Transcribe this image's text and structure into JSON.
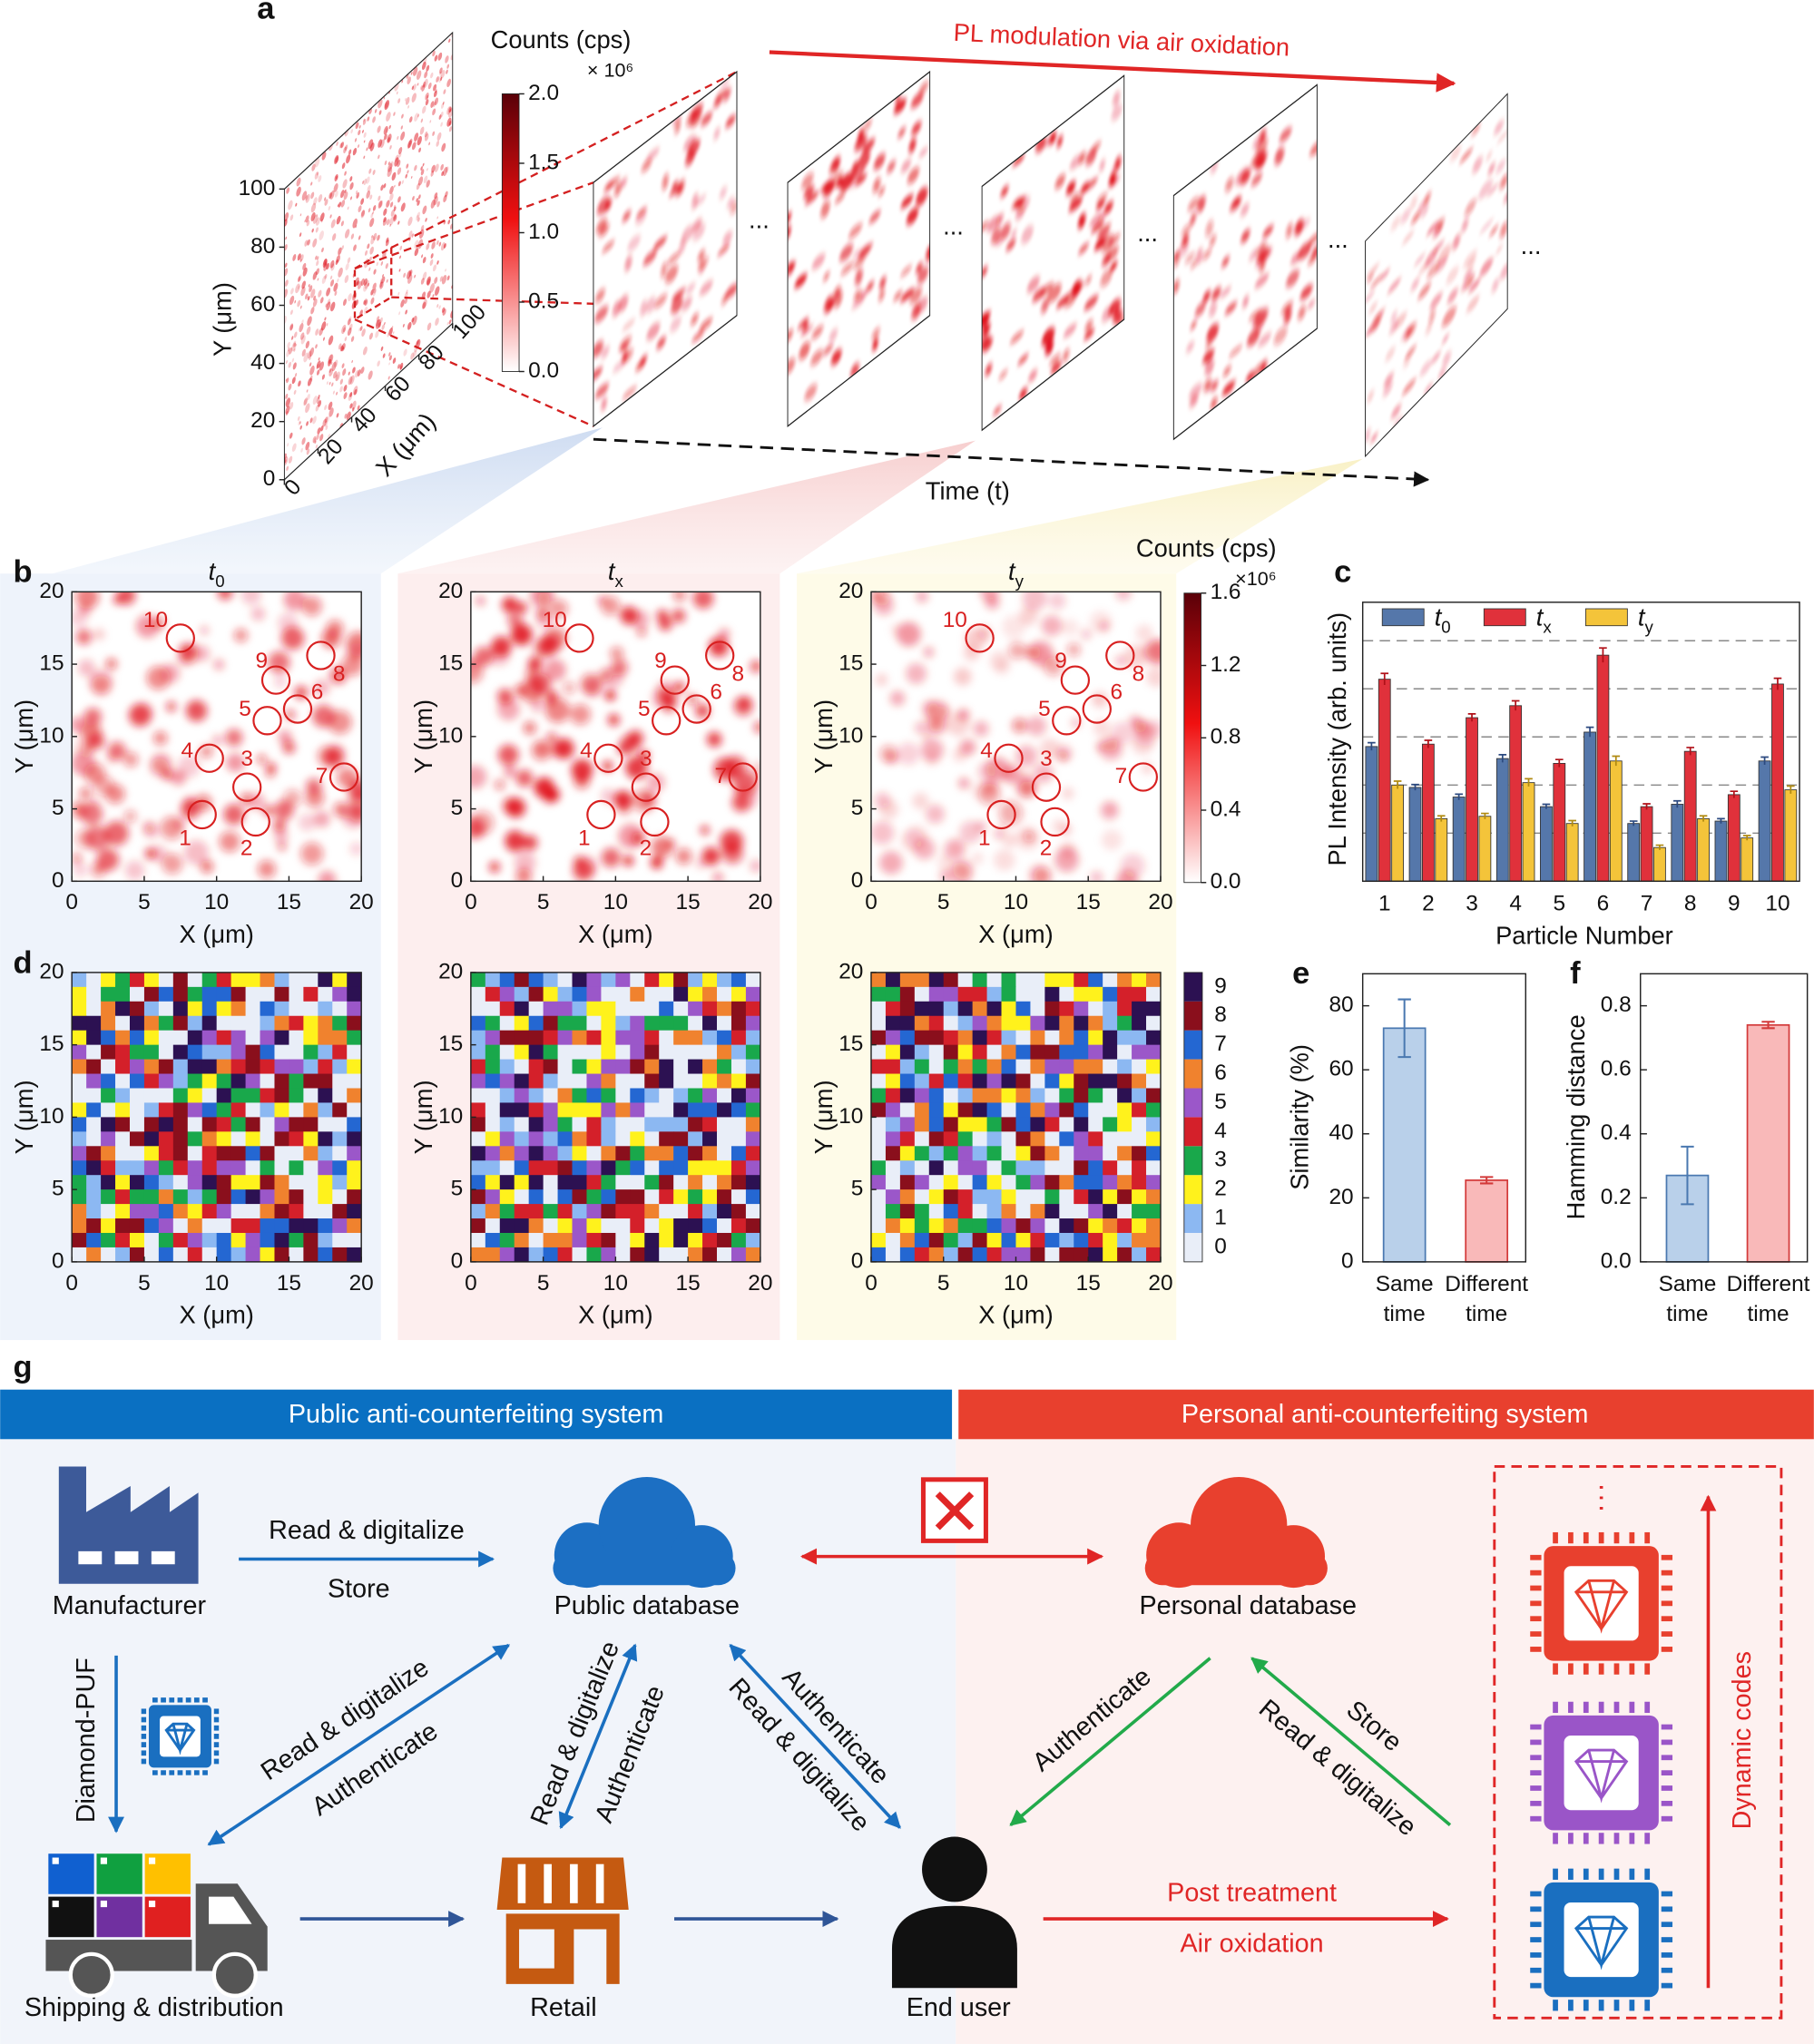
{
  "panel_a": {
    "label": "a",
    "arrow_label": "PL modulation via air oxidation",
    "time_label": "Time (t)",
    "ellipsis": "...",
    "y_label": "Y (μm)",
    "x_label": "X (μm)",
    "lim": [
      0,
      100
    ],
    "yticks": [
      0,
      20,
      40,
      60,
      80,
      100
    ],
    "xticks": [
      0,
      20,
      40,
      60,
      80,
      100
    ],
    "colorbar": {
      "title": "Counts (cps)",
      "multiplier": "× 10⁶",
      "lim": [
        0,
        2
      ],
      "ticks": [
        {
          "value": 0,
          "label": "0.0"
        },
        0.5,
        {
          "value": 1,
          "label": "1.0"
        },
        1.5,
        {
          "value": 2,
          "label": "2.0"
        }
      ]
    }
  },
  "map_axes": {
    "xlim": [
      0,
      20
    ],
    "ylim": [
      0,
      20
    ],
    "xticks": [
      0,
      5,
      10,
      15,
      20
    ],
    "yticks": [
      0,
      5,
      10,
      15,
      20
    ],
    "x_label": "X (μm)",
    "y_label": "Y (μm)"
  },
  "panel_b": {
    "label": "b",
    "maps": [
      {
        "title": "t",
        "sub": "0"
      },
      {
        "title": "t",
        "sub": "x"
      },
      {
        "title": "t",
        "sub": "y"
      }
    ],
    "particles": [
      {
        "label": "1",
        "x": 9.0,
        "y": 4.6
      },
      {
        "label": "2",
        "x": 12.7,
        "y": 4.1
      },
      {
        "label": "3",
        "x": 12.1,
        "y": 6.5
      },
      {
        "label": "4",
        "x": 9.5,
        "y": 8.5
      },
      {
        "label": "5",
        "x": 13.5,
        "y": 11.1
      },
      {
        "label": "6",
        "x": 15.6,
        "y": 11.9
      },
      {
        "label": "7",
        "x": 18.8,
        "y": 7.2
      },
      {
        "label": "8",
        "x": 17.2,
        "y": 15.6
      },
      {
        "label": "9",
        "x": 14.1,
        "y": 13.9
      },
      {
        "label": "10",
        "x": 7.5,
        "y": 16.8
      }
    ],
    "colorbar": {
      "title": "Counts (cps)",
      "multiplier": "×10⁶",
      "lim": [
        0,
        1.6
      ],
      "ticks": [
        {
          "value": 0,
          "label": "0.0"
        },
        0.4,
        0.8,
        1.2,
        1.6
      ]
    }
  },
  "panel_c": {
    "label": "c",
    "type": "bar",
    "y_label": "PL Intensity (arb. units)",
    "x_label": "Particle Number",
    "categories": [
      "1",
      "2",
      "3",
      "4",
      "5",
      "6",
      "7",
      "8",
      "9",
      "10"
    ],
    "ylim": [
      0,
      5.8
    ],
    "grid_lines": [
      1,
      2,
      3,
      4,
      5
    ],
    "series": [
      {
        "name": "t",
        "sub": "0",
        "color": "#5577aa",
        "values": [
          2.8,
          1.95,
          1.75,
          2.55,
          1.55,
          3.1,
          1.2,
          1.6,
          1.25,
          2.5
        ],
        "errors": [
          0.08,
          0.06,
          0.06,
          0.08,
          0.05,
          0.1,
          0.05,
          0.07,
          0.05,
          0.08
        ]
      },
      {
        "name": "t",
        "sub": "x",
        "color": "#e0313b",
        "values": [
          4.2,
          2.85,
          3.4,
          3.65,
          2.45,
          4.7,
          1.55,
          2.7,
          1.8,
          4.1
        ],
        "errors": [
          0.12,
          0.08,
          0.08,
          0.1,
          0.08,
          0.15,
          0.06,
          0.08,
          0.07,
          0.12
        ]
      },
      {
        "name": "t",
        "sub": "y",
        "color": "#f4c43a",
        "values": [
          2.0,
          1.3,
          1.35,
          2.05,
          1.2,
          2.5,
          0.7,
          1.3,
          0.9,
          1.9
        ],
        "errors": [
          0.08,
          0.06,
          0.06,
          0.08,
          0.06,
          0.1,
          0.05,
          0.06,
          0.05,
          0.08
        ]
      }
    ]
  },
  "panel_d": {
    "label": "d",
    "levels": [
      0,
      1,
      2,
      3,
      4,
      5,
      6,
      7,
      8,
      9
    ],
    "colors": [
      "#e9eef8",
      "#8cb8f2",
      "#fff21c",
      "#19a84b",
      "#d4202a",
      "#9b57c9",
      "#f0822e",
      "#2467d2",
      "#8a0f1c",
      "#2c1152"
    ]
  },
  "panel_e": {
    "label": "e",
    "type": "bar",
    "y_label": "Similarity (%)",
    "categories": [
      [
        "Same",
        "time"
      ],
      [
        "Different",
        "time"
      ]
    ],
    "values": [
      73,
      25.5
    ],
    "errors": [
      9,
      1
    ],
    "colors": [
      "#b9d0ea",
      "#f9b9b9"
    ],
    "edge_colors": [
      "#4a78b0",
      "#d33a3a"
    ],
    "ylim": [
      0,
      90
    ],
    "yticks": [
      0,
      20,
      40,
      60,
      80
    ]
  },
  "panel_f": {
    "label": "f",
    "type": "bar",
    "y_label": "Hamming distance",
    "categories": [
      [
        "Same",
        "time"
      ],
      [
        "Different",
        "time"
      ]
    ],
    "values": [
      0.27,
      0.74
    ],
    "errors": [
      0.09,
      0.01
    ],
    "colors": [
      "#b9d0ea",
      "#f9b9b9"
    ],
    "edge_colors": [
      "#4a78b0",
      "#d33a3a"
    ],
    "ylim": [
      0,
      0.9
    ],
    "yticks": [
      {
        "value": 0,
        "label": "0.0"
      },
      0.2,
      0.4,
      0.6,
      0.8
    ]
  },
  "panel_g": {
    "label": "g",
    "public_header": "Public anti-counterfeiting system",
    "personal_header": "Personal anti-counterfeiting system",
    "nodes": {
      "manufacturer": "Manufacturer",
      "public_db": "Public database",
      "personal_db": "Personal database",
      "shipping": "Shipping & distribution",
      "retail": "Retail",
      "end_user": "End user"
    },
    "diamond_puf": "Diamond-PUF",
    "dynamic_codes": "Dynamic codes",
    "edge_labels": {
      "manufacturer_db": [
        "Read & digitalize",
        "Store"
      ],
      "shipping_db": [
        "Read & digitalize",
        "Authenticate"
      ],
      "retail_db": [
        "Read & digitalize",
        "Authenticate"
      ],
      "user_db": [
        "Authenticate",
        "Read & digitalize"
      ],
      "personal_user": [
        "Authenticate"
      ],
      "codes_personal": [
        "Store",
        "Read & digitalize"
      ],
      "user_codes": [
        "Post treatment",
        "Air oxidation"
      ]
    }
  }
}
